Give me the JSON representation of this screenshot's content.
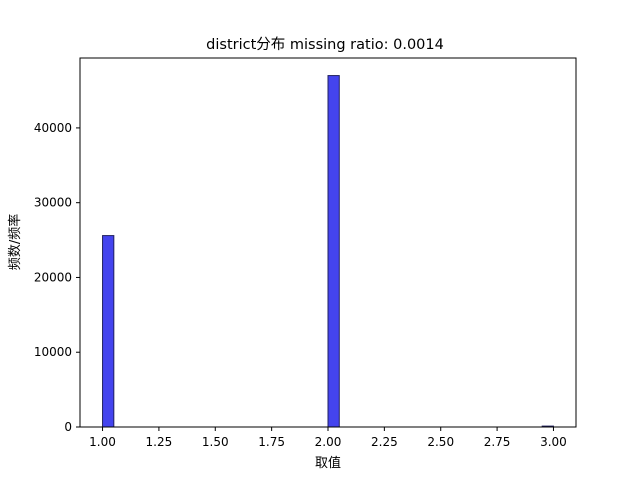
{
  "chart_data": {
    "type": "bar",
    "title": "district分布  missing ratio: 0.0014",
    "xlabel": "取值",
    "ylabel": "频数/频率",
    "xlim": [
      0.9,
      3.1
    ],
    "ylim": [
      0,
      49350
    ],
    "x_ticks": [
      1.0,
      1.25,
      1.5,
      1.75,
      2.0,
      2.25,
      2.5,
      2.75,
      3.0
    ],
    "x_tick_labels": [
      "1.00",
      "1.25",
      "1.50",
      "1.75",
      "2.00",
      "2.25",
      "2.50",
      "2.75",
      "3.00"
    ],
    "y_ticks": [
      0,
      10000,
      20000,
      30000,
      40000
    ],
    "y_tick_labels": [
      "0",
      "10000",
      "20000",
      "30000",
      "40000"
    ],
    "bin_width": 0.05,
    "bins": [
      {
        "x_start": 1.0,
        "x_end": 1.05,
        "count": 25600
      },
      {
        "x_start": 2.0,
        "x_end": 2.05,
        "count": 47000
      },
      {
        "x_start": 2.95,
        "x_end": 3.0,
        "count": 120
      }
    ],
    "bar_color": "#4444ee",
    "bar_edge_color": "#202060",
    "grid": false,
    "legend": "none"
  }
}
